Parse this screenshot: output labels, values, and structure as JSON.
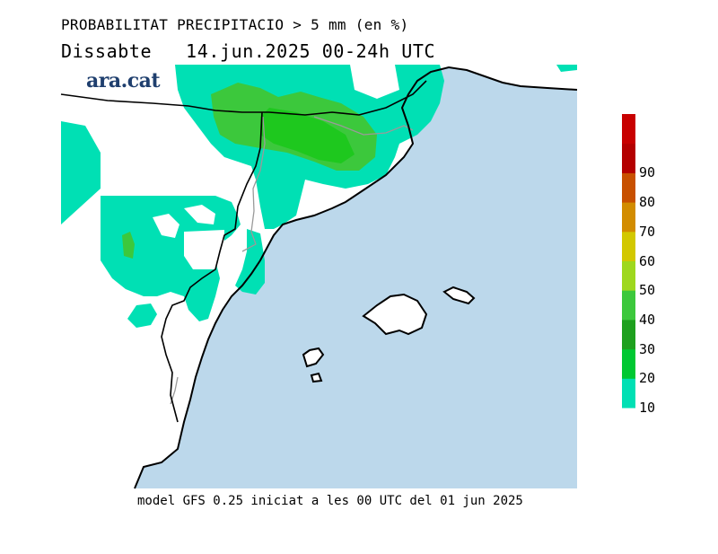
{
  "title": "PROBABILITAT PRECIPITACIO > 5 mm (en %)",
  "subtitle": "Dissabte   14.jun.2025 00-24h UTC",
  "brand": "ara.cat",
  "footer": "model GFS 0.25 iniciat a les 00 UTC del 01 jun 2025",
  "colors": {
    "sea": "#bcd8eb",
    "land": "#ffffff",
    "border": "#000000",
    "region_border": "#9a9a9a"
  },
  "legend": {
    "labels": [
      "10",
      "20",
      "30",
      "40",
      "50",
      "60",
      "70",
      "80",
      "90"
    ],
    "colors": [
      "#00e0b4",
      "#00c832",
      "#1ea01e",
      "#3cc83c",
      "#9ed81e",
      "#d2c800",
      "#d28c00",
      "#c85000",
      "#b40000",
      "#c80000"
    ]
  }
}
